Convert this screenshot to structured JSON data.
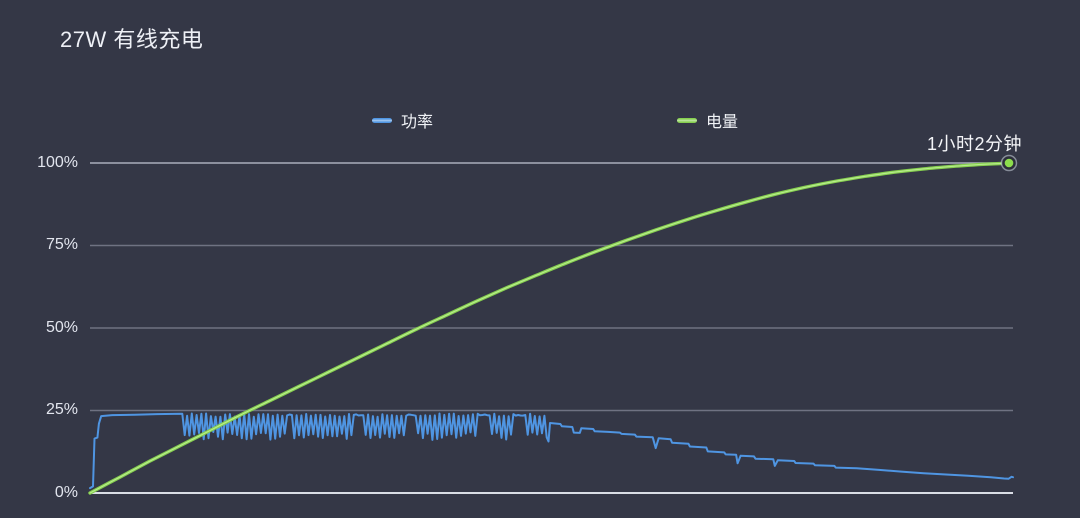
{
  "header": {
    "title": "27W 有线充电"
  },
  "theme": {
    "background": "#343746",
    "text": "#eef0f6",
    "gridline": "#a0a4b4",
    "baseline": "#e4e6ee"
  },
  "axis": {
    "y_tick_labels": [
      "100%",
      "75%",
      "50%",
      "25%",
      "0%"
    ]
  },
  "annotation": {
    "text": "1小时2分钟"
  },
  "chart_data": {
    "type": "line",
    "title": "27W 有线充电",
    "xlabel": "",
    "ylabel": "",
    "x_unit": "minutes",
    "x_range": [
      0,
      62
    ],
    "y_range": [
      0,
      100
    ],
    "y_ticks_pct": [
      0,
      25,
      50,
      75,
      100
    ],
    "y_tick_labels": [
      "0%",
      "25%",
      "50%",
      "75%",
      "100%"
    ],
    "grid": true,
    "legend_position": "top",
    "total_charge_time_label": "1小时2分钟",
    "series": [
      {
        "name": "功率",
        "color": "#4f95e2",
        "style": "noisy-line",
        "points_start": [
          [
            0,
            1.5
          ],
          [
            0.2,
            2
          ],
          [
            0.3,
            16.5
          ],
          [
            0.5,
            16.8
          ],
          [
            0.6,
            21
          ],
          [
            0.75,
            23.3
          ],
          [
            1.5,
            23.6
          ],
          [
            3,
            23.7
          ],
          [
            4.5,
            23.9
          ],
          [
            6.2,
            24
          ]
        ],
        "oscillation": {
          "t_start": 6.36,
          "t_end": 30.7,
          "step": 0.16,
          "hi_base": 23.6,
          "hi_jitter": 1.0,
          "lo_base": 17.3,
          "lo_jitter": 2.4,
          "seed": 7,
          "hold_high": [
            [
              13.1,
              13.7
            ],
            [
              17.7,
              18.5
            ],
            [
              21.2,
              21.9
            ],
            [
              26.1,
              27.0
            ],
            [
              28.5,
              29.3
            ]
          ]
        },
        "points_end": [
          [
            30.8,
            15.6
          ],
          [
            30.9,
            21.2
          ],
          [
            31.6,
            20.9
          ],
          [
            31.7,
            20.2
          ],
          [
            32.4,
            20
          ],
          [
            32.5,
            18.3
          ],
          [
            32.9,
            18.2
          ],
          [
            33,
            19.6
          ],
          [
            33.8,
            19.4
          ],
          [
            33.9,
            18.7
          ],
          [
            34.8,
            18.5
          ],
          [
            35.6,
            18.3
          ],
          [
            35.7,
            17.9
          ],
          [
            36.6,
            17.7
          ],
          [
            36.7,
            17.1
          ],
          [
            37.8,
            16.9
          ],
          [
            38,
            13.6
          ],
          [
            38.2,
            16.6
          ],
          [
            39,
            16.3
          ],
          [
            39.1,
            15.2
          ],
          [
            40.2,
            14.9
          ],
          [
            40.3,
            14.1
          ],
          [
            41.4,
            13.8
          ],
          [
            41.5,
            12.6
          ],
          [
            42.6,
            12.3
          ],
          [
            42.7,
            11.7
          ],
          [
            43.4,
            11.6
          ],
          [
            43.5,
            9
          ],
          [
            43.7,
            11.3
          ],
          [
            44.6,
            11.1
          ],
          [
            44.7,
            10.4
          ],
          [
            45.9,
            10.2
          ],
          [
            46,
            8.2
          ],
          [
            46.2,
            9.9
          ],
          [
            47.3,
            9.7
          ],
          [
            47.4,
            9.1
          ],
          [
            48.6,
            8.9
          ],
          [
            48.7,
            8.4
          ],
          [
            50,
            8.2
          ],
          [
            50.1,
            7.7
          ],
          [
            51.5,
            7.5
          ],
          [
            53,
            7
          ],
          [
            54.5,
            6.5
          ],
          [
            56,
            6
          ],
          [
            57.5,
            5.6
          ],
          [
            59,
            5.2
          ],
          [
            60.5,
            4.8
          ],
          [
            61.4,
            4.4
          ],
          [
            61.7,
            4.3
          ],
          [
            61.9,
            4.9
          ],
          [
            62,
            4.8
          ]
        ]
      },
      {
        "name": "电量",
        "color": "#86cf4f",
        "marker_color": "#8ddd4d",
        "style": "smooth-line",
        "end_label": "1小时2分钟",
        "points": [
          [
            0,
            0
          ],
          [
            2,
            4.8
          ],
          [
            4,
            9.6
          ],
          [
            6,
            14.2
          ],
          [
            8,
            18.8
          ],
          [
            10,
            23.4
          ],
          [
            12,
            27.8
          ],
          [
            14,
            32.2
          ],
          [
            16,
            36.6
          ],
          [
            18,
            41
          ],
          [
            20,
            45.4
          ],
          [
            22,
            49.8
          ],
          [
            24,
            54
          ],
          [
            26,
            58.2
          ],
          [
            28,
            62.2
          ],
          [
            30,
            66
          ],
          [
            32,
            69.7
          ],
          [
            34,
            73.2
          ],
          [
            36,
            76.5
          ],
          [
            38,
            79.7
          ],
          [
            40,
            82.7
          ],
          [
            42,
            85.5
          ],
          [
            44,
            88.1
          ],
          [
            46,
            90.5
          ],
          [
            48,
            92.6
          ],
          [
            50,
            94.4
          ],
          [
            52,
            95.9
          ],
          [
            54,
            97.2
          ],
          [
            56,
            98.2
          ],
          [
            58,
            99
          ],
          [
            60,
            99.6
          ],
          [
            62,
            100
          ]
        ]
      }
    ]
  }
}
